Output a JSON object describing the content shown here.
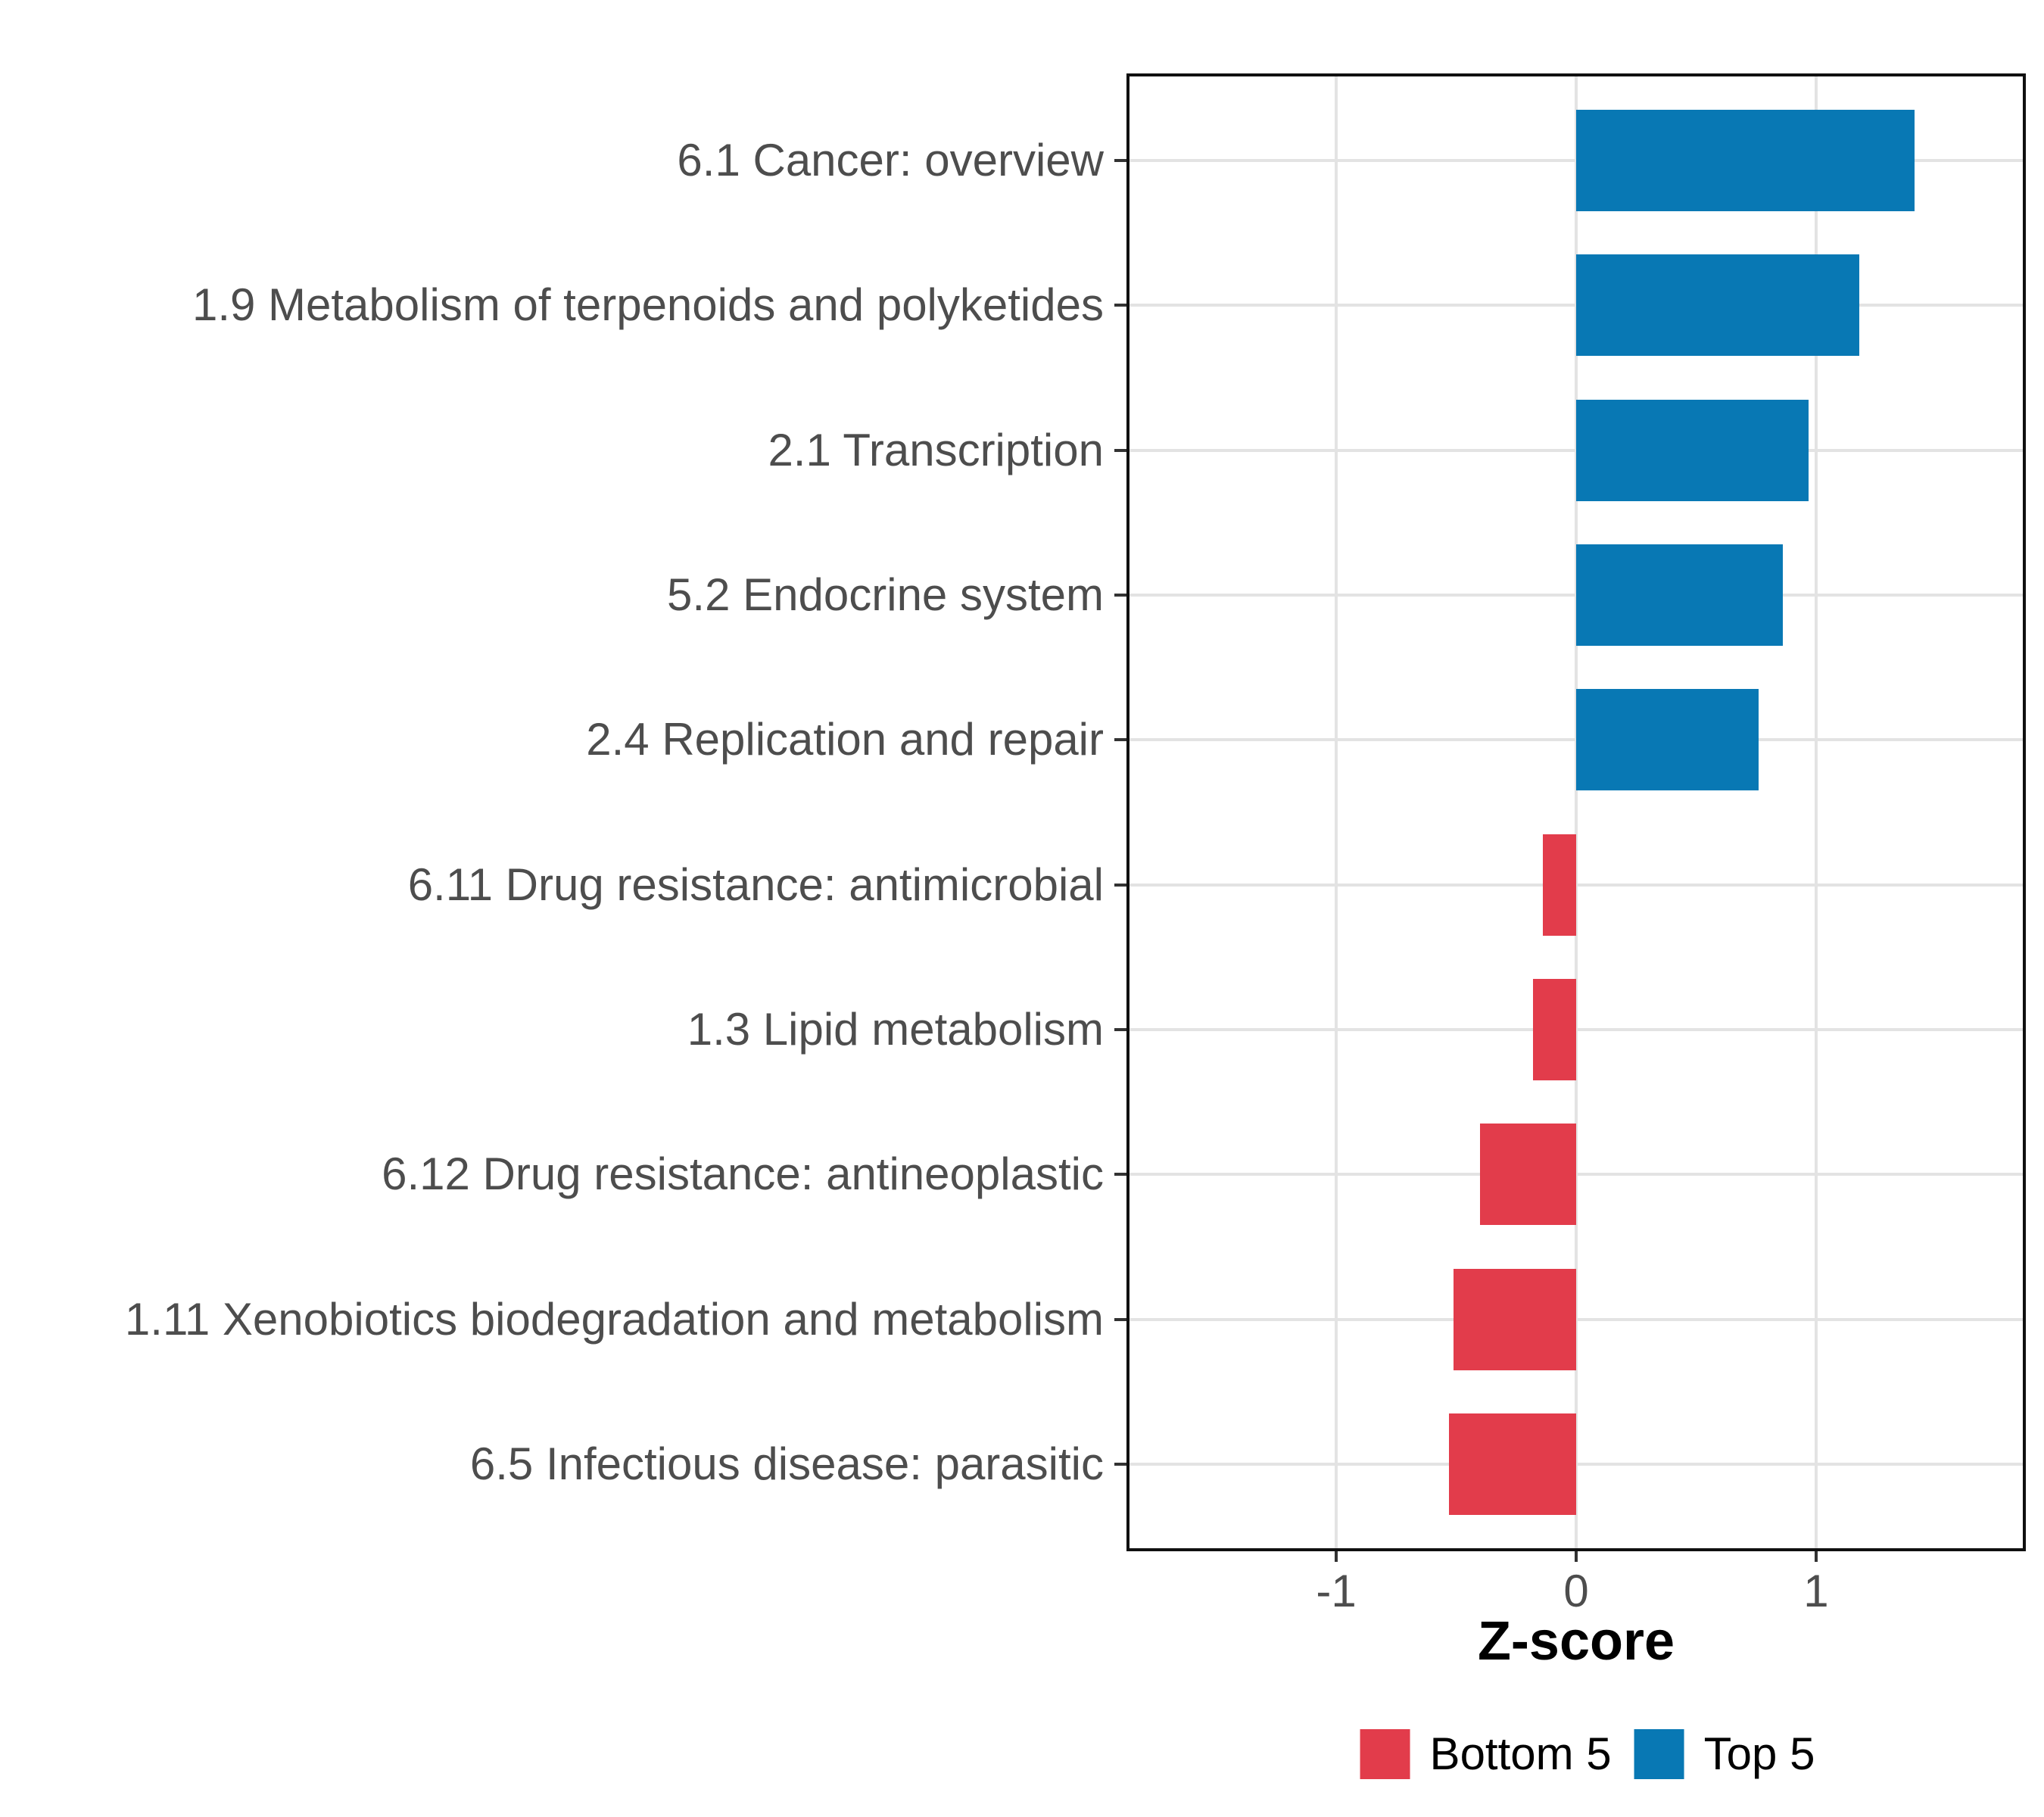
{
  "figure": {
    "background": "#ffffff",
    "panel_bg": "#ffffff",
    "panel_border_color": "#101010",
    "grid_color": "#e3e3e3",
    "tick_color": "#333333",
    "axis_text_color": "#4d4d4d"
  },
  "chart_data": {
    "type": "bar",
    "orientation": "horizontal",
    "title": "",
    "xlabel": "Z-score",
    "ylabel": "",
    "categories": [
      "6.1 Cancer: overview",
      "1.9 Metabolism of terpenoids and polyketides",
      "2.1 Transcription",
      "5.2 Endocrine system",
      "2.4 Replication and repair",
      "6.11 Drug resistance: antimicrobial",
      "1.3 Lipid metabolism",
      "6.12 Drug resistance: antineoplastic",
      "1.11 Xenobiotics biodegradation and metabolism",
      "6.5 Infectious disease: parasitic"
    ],
    "values": [
      1.41,
      1.18,
      0.97,
      0.86,
      0.76,
      -0.14,
      -0.18,
      -0.4,
      -0.51,
      -0.53
    ],
    "groups": [
      "Top 5",
      "Top 5",
      "Top 5",
      "Top 5",
      "Top 5",
      "Bottom 5",
      "Bottom 5",
      "Bottom 5",
      "Bottom 5",
      "Bottom 5"
    ],
    "group_colors": {
      "Top 5": "#0878B4",
      "Bottom 5": "#E23C4B"
    },
    "xlim": [
      -1.874,
      1.874
    ],
    "x_ticks": [
      -1,
      0,
      1
    ],
    "x_tick_labels": [
      "-1",
      "0",
      "1"
    ],
    "grid": true,
    "legend_position": "bottom"
  },
  "legend": {
    "items": [
      {
        "label": "Bottom 5",
        "color": "#E23C4B"
      },
      {
        "label": "Top 5",
        "color": "#0878B4"
      }
    ]
  }
}
